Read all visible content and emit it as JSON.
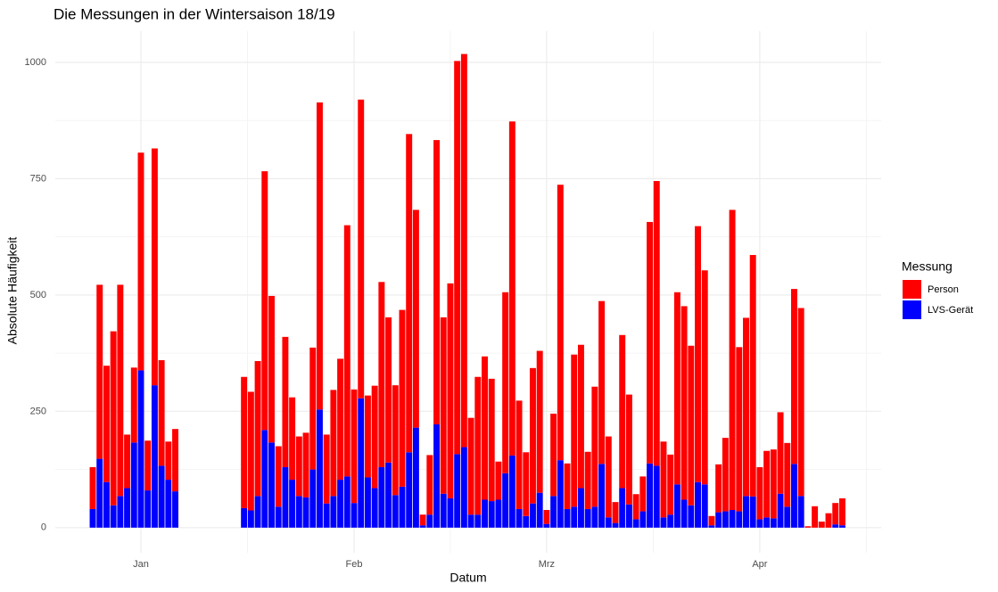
{
  "chart_data": {
    "type": "stacked_bar",
    "title": "Die Messungen in der Wintersaison 18/19",
    "x_label": "Datum",
    "y_label": "Absolute Häufigkeit",
    "legend_title": "Messung",
    "legend_position": "right",
    "grid": true,
    "x": [
      -7,
      -6,
      -5,
      -4,
      -3,
      -2,
      -1,
      0,
      1,
      2,
      3,
      4,
      5,
      15,
      16,
      17,
      18,
      19,
      20,
      21,
      22,
      23,
      24,
      25,
      26,
      27,
      28,
      29,
      30,
      31,
      32,
      33,
      34,
      35,
      36,
      37,
      38,
      39,
      40,
      41,
      42,
      43,
      44,
      45,
      46,
      47,
      48,
      49,
      50,
      51,
      52,
      53,
      54,
      55,
      56,
      57,
      58,
      59,
      60,
      61,
      62,
      63,
      64,
      65,
      66,
      67,
      68,
      69,
      70,
      71,
      72,
      73,
      74,
      75,
      76,
      77,
      78,
      79,
      80,
      81,
      82,
      83,
      84,
      85,
      86,
      87,
      88,
      89,
      90,
      91,
      92,
      93,
      94,
      95,
      96,
      97,
      98,
      99,
      100,
      101,
      102
    ],
    "series": [
      {
        "name": "Person",
        "color": "#ff0000",
        "values": [
          90,
          374,
          250,
          374,
          454,
          115,
          161,
          468,
          107,
          509,
          227,
          82,
          134,
          282,
          255,
          290,
          556,
          315,
          130,
          280,
          177,
          128,
          139,
          262,
          660,
          148,
          228,
          260,
          540,
          244,
          642,
          176,
          220,
          398,
          312,
          236,
          380,
          684,
          468,
          23,
          128,
          611,
          379,
          462,
          845,
          845,
          208,
          296,
          308,
          263,
          82,
          389,
          718,
          233,
          137,
          291,
          305,
          30,
          177,
          592,
          98,
          327,
          308,
          123,
          258,
          350,
          174,
          45,
          329,
          236,
          54,
          75,
          519,
          612,
          163,
          129,
          413,
          416,
          343,
          550,
          460,
          20,
          103,
          158,
          645,
          353,
          383,
          519,
          112,
          143,
          148,
          175,
          137,
          376,
          404,
          3,
          46,
          13,
          31,
          46,
          58
        ]
      },
      {
        "name": "LVS-Gerät",
        "color": "#0000ff",
        "values": [
          40,
          148,
          98,
          48,
          68,
          85,
          183,
          338,
          80,
          306,
          133,
          103,
          78,
          42,
          37,
          68,
          210,
          183,
          45,
          130,
          103,
          68,
          65,
          125,
          254,
          52,
          68,
          103,
          110,
          53,
          278,
          108,
          85,
          130,
          140,
          70,
          88,
          162,
          215,
          5,
          28,
          222,
          73,
          63,
          158,
          173,
          28,
          28,
          60,
          57,
          60,
          117,
          155,
          40,
          25,
          52,
          75,
          8,
          68,
          145,
          40,
          45,
          85,
          40,
          45,
          137,
          22,
          10,
          85,
          50,
          18,
          35,
          138,
          133,
          22,
          28,
          93,
          60,
          48,
          98,
          93,
          5,
          33,
          35,
          38,
          35,
          68,
          67,
          18,
          22,
          20,
          73,
          45,
          137,
          68,
          0,
          0,
          0,
          0,
          7,
          5
        ]
      }
    ],
    "xlim": [
      -12.45,
      107.65
    ],
    "xticks": [
      {
        "value": 0,
        "label": "Jan"
      },
      {
        "value": 31,
        "label": "Feb"
      },
      {
        "value": 59,
        "label": "Mrz"
      },
      {
        "value": 90,
        "label": "Apr"
      }
    ],
    "ylim": [
      -54,
      1067
    ],
    "yticks": [
      0,
      250,
      500,
      750,
      1000
    ]
  }
}
